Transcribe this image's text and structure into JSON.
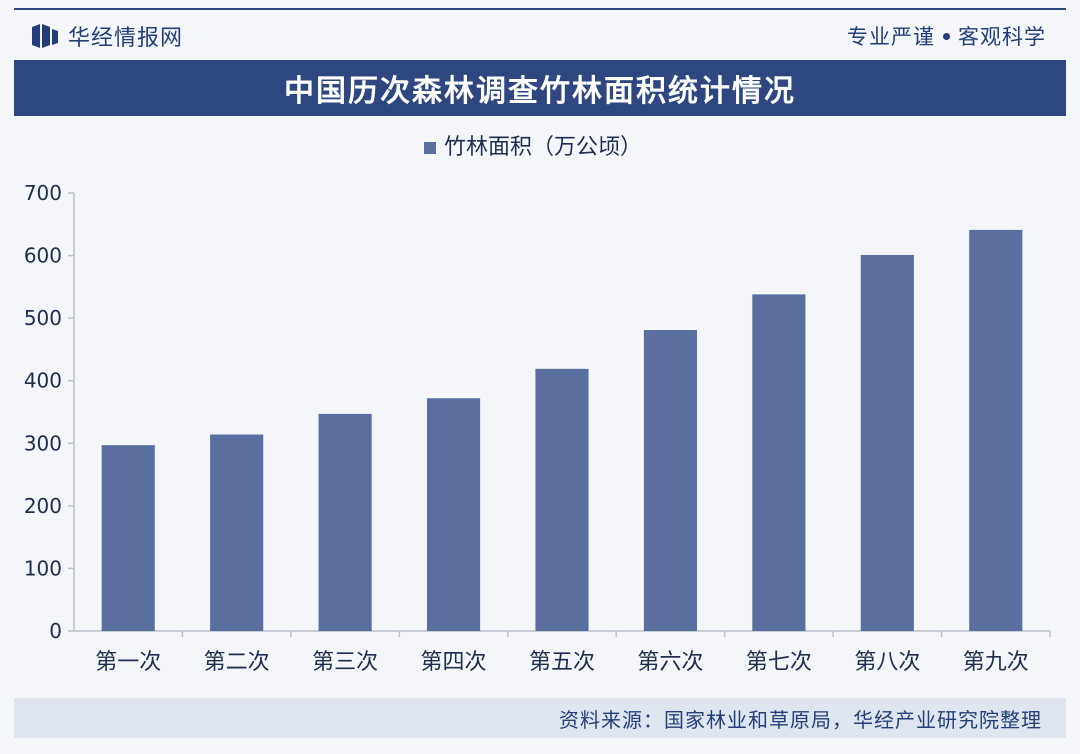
{
  "header": {
    "brand": "华经情报网",
    "slogan_left": "专业严谨",
    "slogan_right": "客观科学"
  },
  "title": "中国历次森林调查竹林面积统计情况",
  "source": "资料来源：国家林业和草原局，华经产业研究院整理",
  "colors": {
    "bar": "#5a6fa0",
    "title_bg": "#2e4781",
    "text": "#243e7a"
  },
  "chart_data": {
    "type": "bar",
    "categories": [
      "第一次",
      "第二次",
      "第三次",
      "第四次",
      "第五次",
      "第六次",
      "第七次",
      "第八次",
      "第九次"
    ],
    "series": [
      {
        "name": "竹林面积（万公顷）",
        "values": [
          297,
          314,
          347,
          372,
          419,
          481,
          538,
          601,
          641
        ]
      }
    ],
    "ylim": [
      0,
      700
    ],
    "yticks": [
      0,
      100,
      200,
      300,
      400,
      500,
      600,
      700
    ],
    "legend": "top-center",
    "grid": false
  }
}
